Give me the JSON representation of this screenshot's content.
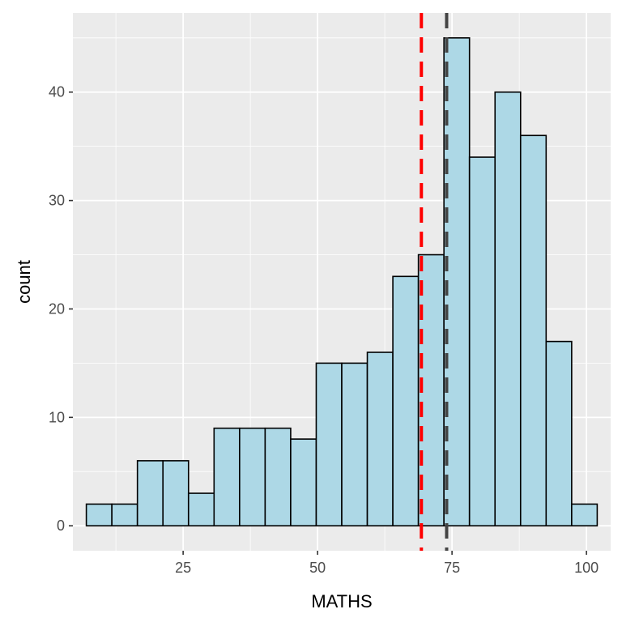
{
  "chart_data": {
    "type": "bar",
    "xlabel": "MATHS",
    "ylabel": "count",
    "xlim": [
      4.5,
      104.5
    ],
    "ylim": [
      -2.3,
      47.3
    ],
    "x_ticks": [
      25,
      50,
      75,
      100
    ],
    "y_ticks": [
      0,
      10,
      20,
      30,
      40
    ],
    "grid": true,
    "bin_width": 4.75,
    "bins": [
      {
        "start": 7.0,
        "count": 2
      },
      {
        "start": 11.75,
        "count": 2
      },
      {
        "start": 16.5,
        "count": 6
      },
      {
        "start": 21.25,
        "count": 6
      },
      {
        "start": 26.0,
        "count": 3
      },
      {
        "start": 30.75,
        "count": 9
      },
      {
        "start": 35.5,
        "count": 9
      },
      {
        "start": 40.25,
        "count": 9
      },
      {
        "start": 45.0,
        "count": 8
      },
      {
        "start": 49.75,
        "count": 15
      },
      {
        "start": 54.5,
        "count": 15
      },
      {
        "start": 59.25,
        "count": 16
      },
      {
        "start": 64.0,
        "count": 23
      },
      {
        "start": 68.75,
        "count": 25
      },
      {
        "start": 73.5,
        "count": 45
      },
      {
        "start": 78.25,
        "count": 34
      },
      {
        "start": 83.0,
        "count": 40
      },
      {
        "start": 87.75,
        "count": 36
      },
      {
        "start": 92.5,
        "count": 17
      },
      {
        "start": 97.25,
        "count": 2
      }
    ],
    "reference_lines": [
      {
        "x": 69.3,
        "color": "#ff0000"
      },
      {
        "x": 74.0,
        "color": "#444444"
      }
    ],
    "colors": {
      "panel_bg": "#ebebeb",
      "grid": "#ffffff",
      "bar_fill": "#add8e6",
      "bar_stroke": "#000000"
    }
  }
}
